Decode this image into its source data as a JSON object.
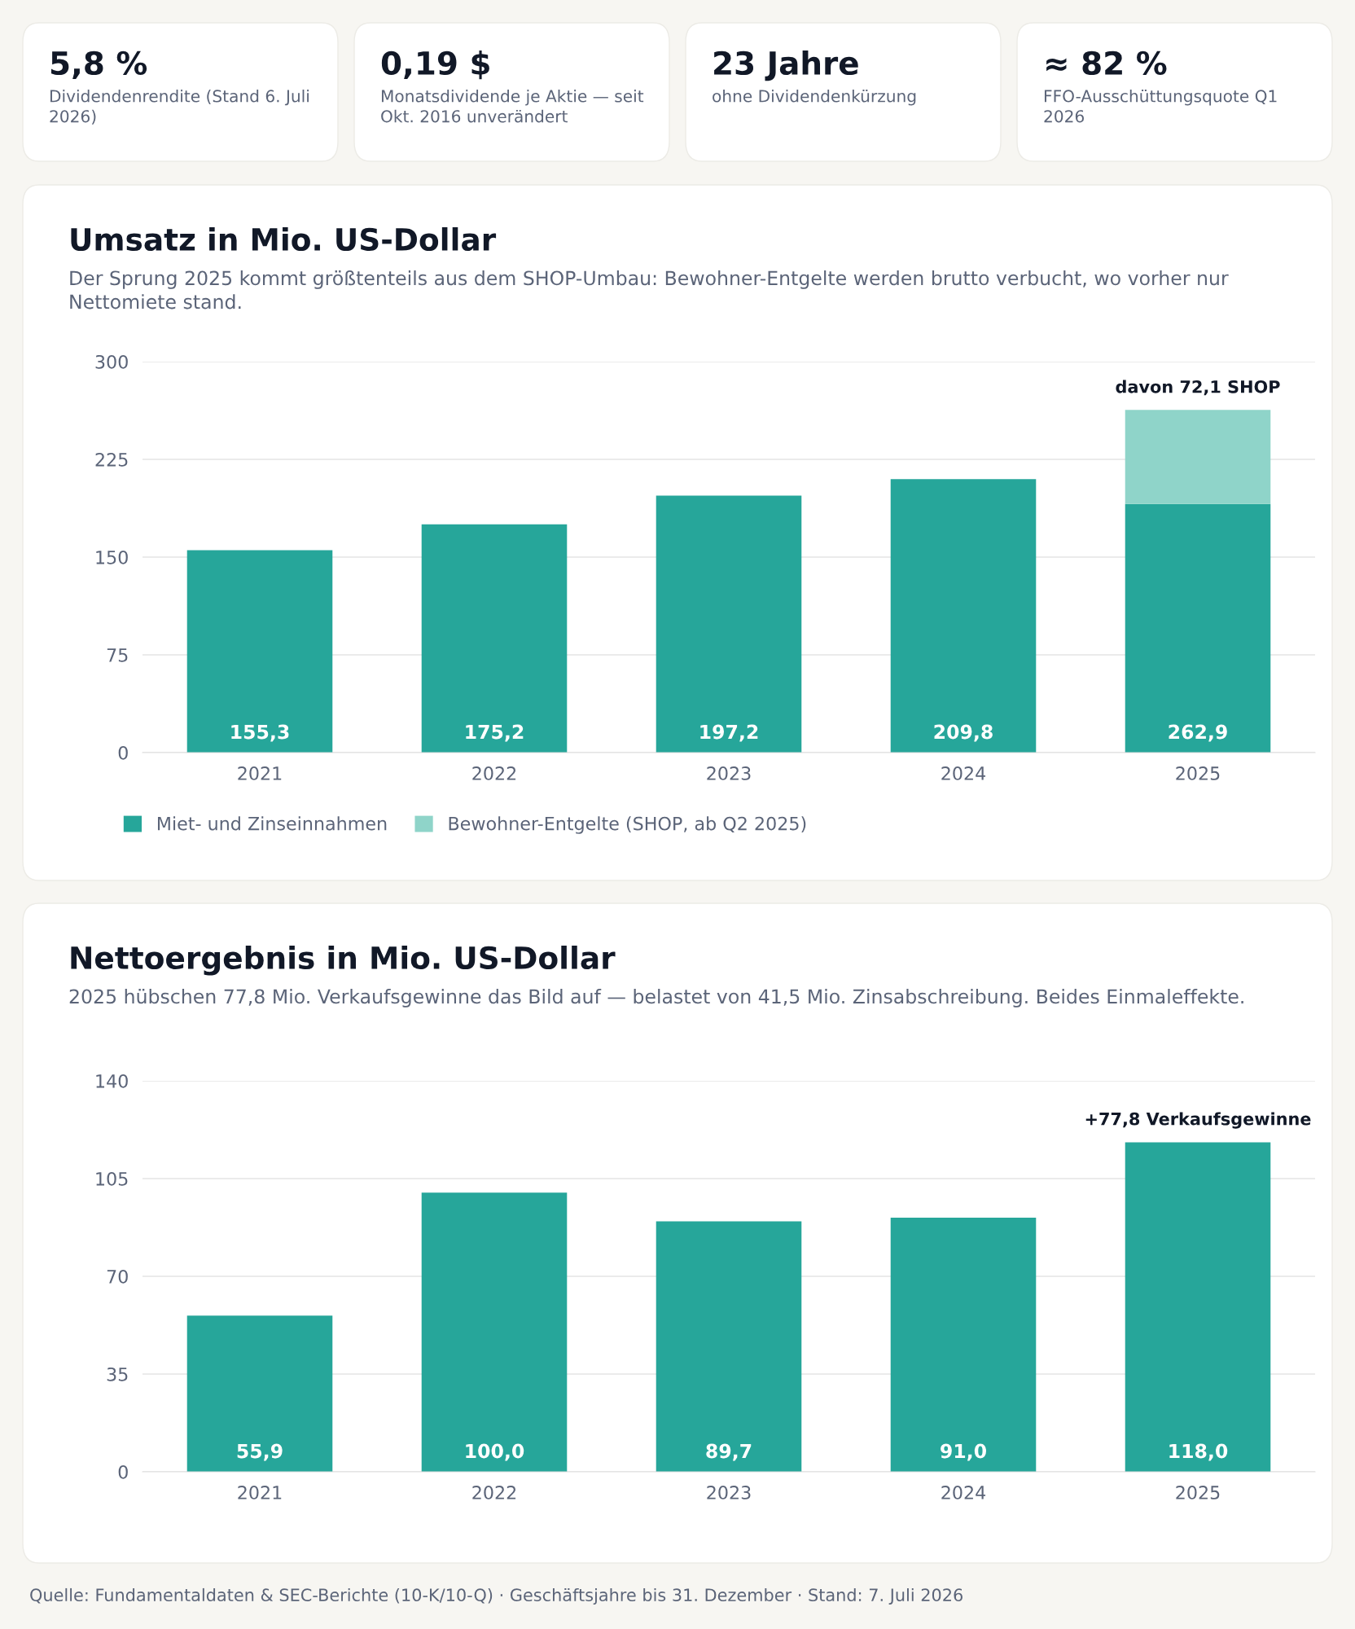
{
  "chart_data": [
    {
      "type": "other",
      "annotations": [
        "5,8 %",
        "Dividendenrendite (Stand 6. Juli 2026)",
        "0,19 $",
        "Monatsdividende je Aktie — seit Okt. 2016 unverändert",
        "23 Jahre",
        "ohne Dividendenkürzung",
        "≈ 82 %",
        "FFO-Ausschüttungsquote Q1 2026"
      ]
    },
    {
      "type": "bar",
      "title": "Umsatz in Mio. US-Dollar",
      "subtitle": "Der Sprung 2025 kommt größtenteils aus dem SHOP-Umbau: Bewohner-Entgelte werden brutto verbucht, wo vorher nur Nettomiete stand.",
      "categories": [
        "2021",
        "2022",
        "2023",
        "2024",
        "2025"
      ],
      "stacked": true,
      "series": [
        {
          "name": "Miet- und Zinseinnahmen",
          "color": "#26a69a",
          "values": [
            155.3,
            175.2,
            197.2,
            209.8,
            190.8
          ]
        },
        {
          "name": "Bewohner-Entgelte (SHOP, ab Q2 2025)",
          "color": "#8fd4c9",
          "values": [
            null,
            null,
            null,
            null,
            72.1
          ]
        }
      ],
      "totals": [
        "155,3",
        "175,2",
        "197,2",
        "209,8",
        "262,9"
      ],
      "ylim": [
        0,
        300
      ],
      "yticks": [
        0,
        75,
        150,
        225,
        300
      ],
      "grid": "y",
      "legend": "bottom left",
      "annotations": [
        {
          "text": "davon 72,1 SHOP",
          "x": "2025",
          "y": 262.9
        }
      ]
    },
    {
      "type": "bar",
      "title": "Nettoergebnis in Mio. US-Dollar",
      "subtitle": "2025 hübschen 77,8 Mio. Verkaufsgewinne das Bild auf — belastet von 41,5 Mio. Zinsabschreibung. Beides Einmaleffekte.",
      "categories": [
        "2021",
        "2022",
        "2023",
        "2024",
        "2025"
      ],
      "series": [
        {
          "color": "#26a69a",
          "values": [
            55.9,
            100.0,
            89.7,
            91.0,
            118.0
          ]
        }
      ],
      "value_labels": [
        "55,9",
        "100,0",
        "89,7",
        "91,0",
        "118,0"
      ],
      "ylim": [
        0,
        140
      ],
      "yticks": [
        0,
        35,
        70,
        105,
        140
      ],
      "grid": "y",
      "annotations": [
        {
          "text": "+77,8 Verkaufsgewinne",
          "x": "2025",
          "y": 118.0
        },
        "Quelle: Fundamentaldaten & SEC-Berichte (10-K/10-Q) · Geschäftsjahre bis 31. Dezember · Stand: 7. Juli 2026"
      ]
    }
  ]
}
